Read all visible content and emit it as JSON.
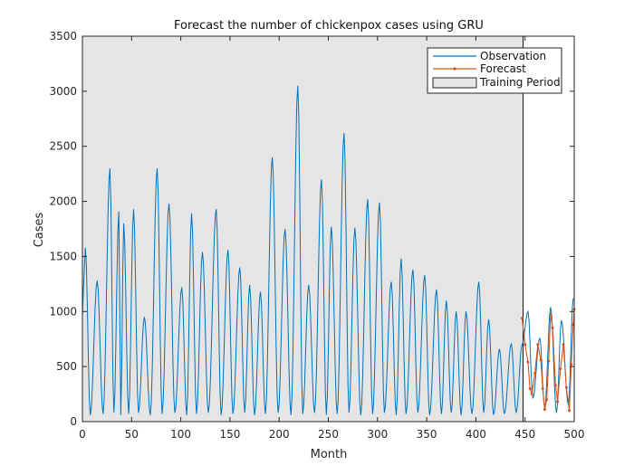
{
  "chart_data": {
    "type": "line",
    "title": "Forecast the number of chickenpox cases using GRU",
    "xlabel": "Month",
    "ylabel": "Cases",
    "xlim": [
      0,
      500
    ],
    "ylim": [
      0,
      3500
    ],
    "xticks": [
      0,
      50,
      100,
      150,
      200,
      250,
      300,
      350,
      400,
      450,
      500
    ],
    "yticks": [
      0,
      500,
      1000,
      1500,
      2000,
      2500,
      3000,
      3500
    ],
    "training_period": [
      0,
      448
    ],
    "legend": {
      "placement": "top-right",
      "observation": "Observation",
      "forecast": "Forecast",
      "training": "Training Period"
    },
    "colors": {
      "observation": "#0072BD",
      "forecast": "#D95319",
      "training_fill": "#E5E5E5"
    },
    "observation": {
      "peaks": [
        [
          3,
          1580
        ],
        [
          15,
          1280
        ],
        [
          28,
          2300
        ],
        [
          37,
          1910
        ],
        [
          42,
          1800
        ],
        [
          52,
          1930
        ],
        [
          63,
          950
        ],
        [
          76,
          2300
        ],
        [
          88,
          1980
        ],
        [
          101,
          1220
        ],
        [
          111,
          1890
        ],
        [
          122,
          1540
        ],
        [
          136,
          1930
        ],
        [
          148,
          1560
        ],
        [
          160,
          1400
        ],
        [
          170,
          1240
        ],
        [
          181,
          1180
        ],
        [
          193,
          2400
        ],
        [
          206,
          1750
        ],
        [
          219,
          3050
        ],
        [
          230,
          1240
        ],
        [
          243,
          2200
        ],
        [
          253,
          1770
        ],
        [
          266,
          2620
        ],
        [
          277,
          1760
        ],
        [
          290,
          2020
        ],
        [
          302,
          1990
        ],
        [
          314,
          1270
        ],
        [
          324,
          1480
        ],
        [
          336,
          1380
        ],
        [
          348,
          1330
        ],
        [
          360,
          1200
        ],
        [
          370,
          1100
        ],
        [
          380,
          1000
        ],
        [
          390,
          1000
        ],
        [
          403,
          1270
        ],
        [
          413,
          930
        ],
        [
          424,
          660
        ],
        [
          436,
          710
        ]
      ],
      "end": [
        [
          447,
          700
        ],
        [
          453,
          1000
        ],
        [
          458,
          210
        ],
        [
          465,
          760
        ],
        [
          470,
          120
        ],
        [
          476,
          1040
        ],
        [
          482,
          80
        ],
        [
          487,
          920
        ],
        [
          494,
          150
        ],
        [
          499,
          1120
        ]
      ]
    },
    "forecast": [
      [
        447,
        940
      ],
      [
        450,
        700
      ],
      [
        453,
        540
      ],
      [
        455,
        300
      ],
      [
        457,
        250
      ],
      [
        460,
        440
      ],
      [
        463,
        700
      ],
      [
        466,
        560
      ],
      [
        468,
        300
      ],
      [
        470,
        110
      ],
      [
        472,
        200
      ],
      [
        474,
        550
      ],
      [
        476,
        980
      ],
      [
        478,
        850
      ],
      [
        481,
        330
      ],
      [
        483,
        180
      ],
      [
        486,
        480
      ],
      [
        489,
        700
      ],
      [
        492,
        310
      ],
      [
        495,
        100
      ],
      [
        497,
        520
      ],
      [
        499,
        880
      ],
      [
        500,
        1020
      ]
    ]
  }
}
